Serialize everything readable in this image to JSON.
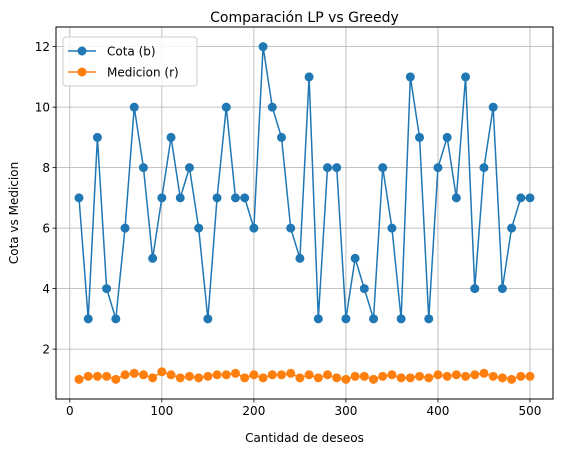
{
  "chart_data": {
    "type": "line",
    "title": "Comparación LP vs Greedy",
    "xlabel": "Cantidad de deseos",
    "ylabel": "Cota vs Medicion",
    "xlim": [
      -15,
      525
    ],
    "ylim": [
      0.35,
      12.65
    ],
    "x_ticks": [
      0,
      100,
      200,
      300,
      400,
      500
    ],
    "y_ticks": [
      2,
      4,
      6,
      8,
      10,
      12
    ],
    "grid": true,
    "legend_position": "top-left",
    "x": [
      10,
      20,
      30,
      40,
      50,
      60,
      70,
      80,
      90,
      100,
      110,
      120,
      130,
      140,
      150,
      160,
      170,
      180,
      190,
      200,
      210,
      220,
      230,
      240,
      250,
      260,
      270,
      280,
      290,
      300,
      310,
      320,
      330,
      340,
      350,
      360,
      370,
      380,
      390,
      400,
      410,
      420,
      430,
      440,
      450,
      460,
      470,
      480,
      490,
      500
    ],
    "series": [
      {
        "name": "Cota (b)",
        "color": "#1f77b4",
        "values": [
          7,
          3,
          9,
          4,
          3,
          6,
          10,
          8,
          5,
          7,
          9,
          7,
          8,
          6,
          3,
          7,
          10,
          7,
          7,
          6,
          12,
          10,
          9,
          6,
          5,
          11,
          3,
          8,
          8,
          3,
          5,
          4,
          3,
          8,
          6,
          3,
          11,
          9,
          3,
          8,
          9,
          7,
          11,
          4,
          8,
          10,
          4,
          6,
          7,
          7
        ]
      },
      {
        "name": "Medicion (r)",
        "color": "#ff7f0e",
        "values": [
          1.0,
          1.1,
          1.1,
          1.1,
          1.0,
          1.15,
          1.2,
          1.15,
          1.05,
          1.25,
          1.15,
          1.05,
          1.1,
          1.05,
          1.1,
          1.15,
          1.15,
          1.2,
          1.05,
          1.15,
          1.05,
          1.15,
          1.15,
          1.2,
          1.05,
          1.15,
          1.05,
          1.15,
          1.05,
          1.0,
          1.1,
          1.1,
          1.0,
          1.1,
          1.15,
          1.05,
          1.05,
          1.1,
          1.05,
          1.15,
          1.1,
          1.15,
          1.1,
          1.15,
          1.2,
          1.1,
          1.05,
          1.0,
          1.1,
          1.1
        ]
      }
    ]
  }
}
